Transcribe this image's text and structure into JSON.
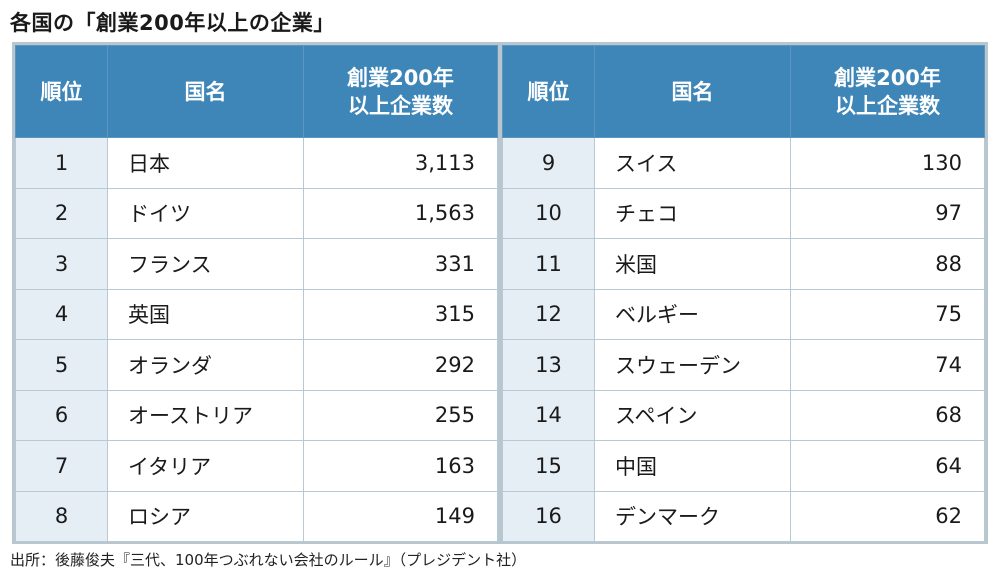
{
  "title": "各国の「創業200年以上の企業」",
  "headers": {
    "rank": "順位",
    "country": "国名",
    "count_line1": "創業200年",
    "count_line2": "以上企業数"
  },
  "left_rows": [
    {
      "rank": "1",
      "country": "日本",
      "count": "3,113"
    },
    {
      "rank": "2",
      "country": "ドイツ",
      "count": "1,563"
    },
    {
      "rank": "3",
      "country": "フランス",
      "count": "331"
    },
    {
      "rank": "4",
      "country": "英国",
      "count": "315"
    },
    {
      "rank": "5",
      "country": "オランダ",
      "count": "292"
    },
    {
      "rank": "6",
      "country": "オーストリア",
      "count": "255"
    },
    {
      "rank": "7",
      "country": "イタリア",
      "count": "163"
    },
    {
      "rank": "8",
      "country": "ロシア",
      "count": "149"
    }
  ],
  "right_rows": [
    {
      "rank": "9",
      "country": "スイス",
      "count": "130"
    },
    {
      "rank": "10",
      "country": "チェコ",
      "count": "97"
    },
    {
      "rank": "11",
      "country": "米国",
      "count": "88"
    },
    {
      "rank": "12",
      "country": "ベルギー",
      "count": "75"
    },
    {
      "rank": "13",
      "country": "スウェーデン",
      "count": "74"
    },
    {
      "rank": "14",
      "country": "スペイン",
      "count": "68"
    },
    {
      "rank": "15",
      "country": "中国",
      "count": "64"
    },
    {
      "rank": "16",
      "country": "デンマーク",
      "count": "62"
    }
  ],
  "source": "出所：後藤俊夫『三代、100年つぶれない会社のルール』（プレジデント社）",
  "colors": {
    "header_bg": "#3f86b8",
    "rank_bg": "#e5eef5",
    "frame": "#b8c6cf"
  }
}
